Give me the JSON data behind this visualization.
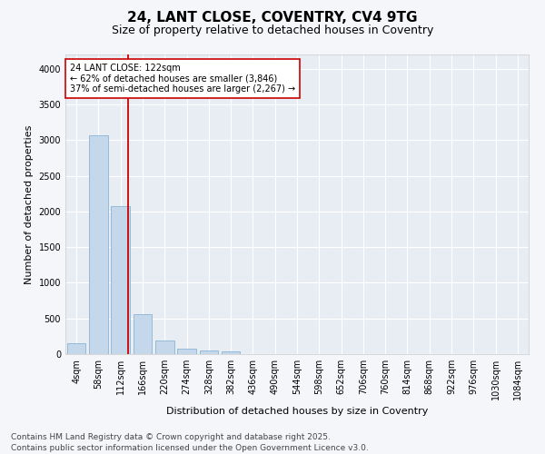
{
  "title": "24, LANT CLOSE, COVENTRY, CV4 9TG",
  "subtitle": "Size of property relative to detached houses in Coventry",
  "xlabel": "Distribution of detached houses by size in Coventry",
  "ylabel": "Number of detached properties",
  "bar_color": "#c5d8eb",
  "bar_edge_color": "#8ab4d4",
  "background_color": "#e8edf4",
  "grid_color": "#ffffff",
  "fig_background": "#f4f6fa",
  "categories": [
    "4sqm",
    "58sqm",
    "112sqm",
    "166sqm",
    "220sqm",
    "274sqm",
    "328sqm",
    "382sqm",
    "436sqm",
    "490sqm",
    "544sqm",
    "598sqm",
    "652sqm",
    "706sqm",
    "760sqm",
    "814sqm",
    "868sqm",
    "922sqm",
    "976sqm",
    "1030sqm",
    "1084sqm"
  ],
  "values": [
    150,
    3070,
    2070,
    560,
    190,
    80,
    55,
    40,
    0,
    0,
    0,
    0,
    0,
    0,
    0,
    0,
    0,
    0,
    0,
    0,
    0
  ],
  "property_label": "24 LANT CLOSE: 122sqm",
  "annotation_line1": "← 62% of detached houses are smaller (3,846)",
  "annotation_line2": "37% of semi-detached houses are larger (2,267) →",
  "vline_color": "#cc0000",
  "vline_x": 2.35,
  "footer": "Contains HM Land Registry data © Crown copyright and database right 2025.\nContains public sector information licensed under the Open Government Licence v3.0.",
  "ylim": [
    0,
    4200
  ],
  "yticks": [
    0,
    500,
    1000,
    1500,
    2000,
    2500,
    3000,
    3500,
    4000
  ],
  "title_fontsize": 11,
  "subtitle_fontsize": 9,
  "axis_label_fontsize": 8,
  "tick_fontsize": 7,
  "annotation_fontsize": 7,
  "footer_fontsize": 6.5
}
